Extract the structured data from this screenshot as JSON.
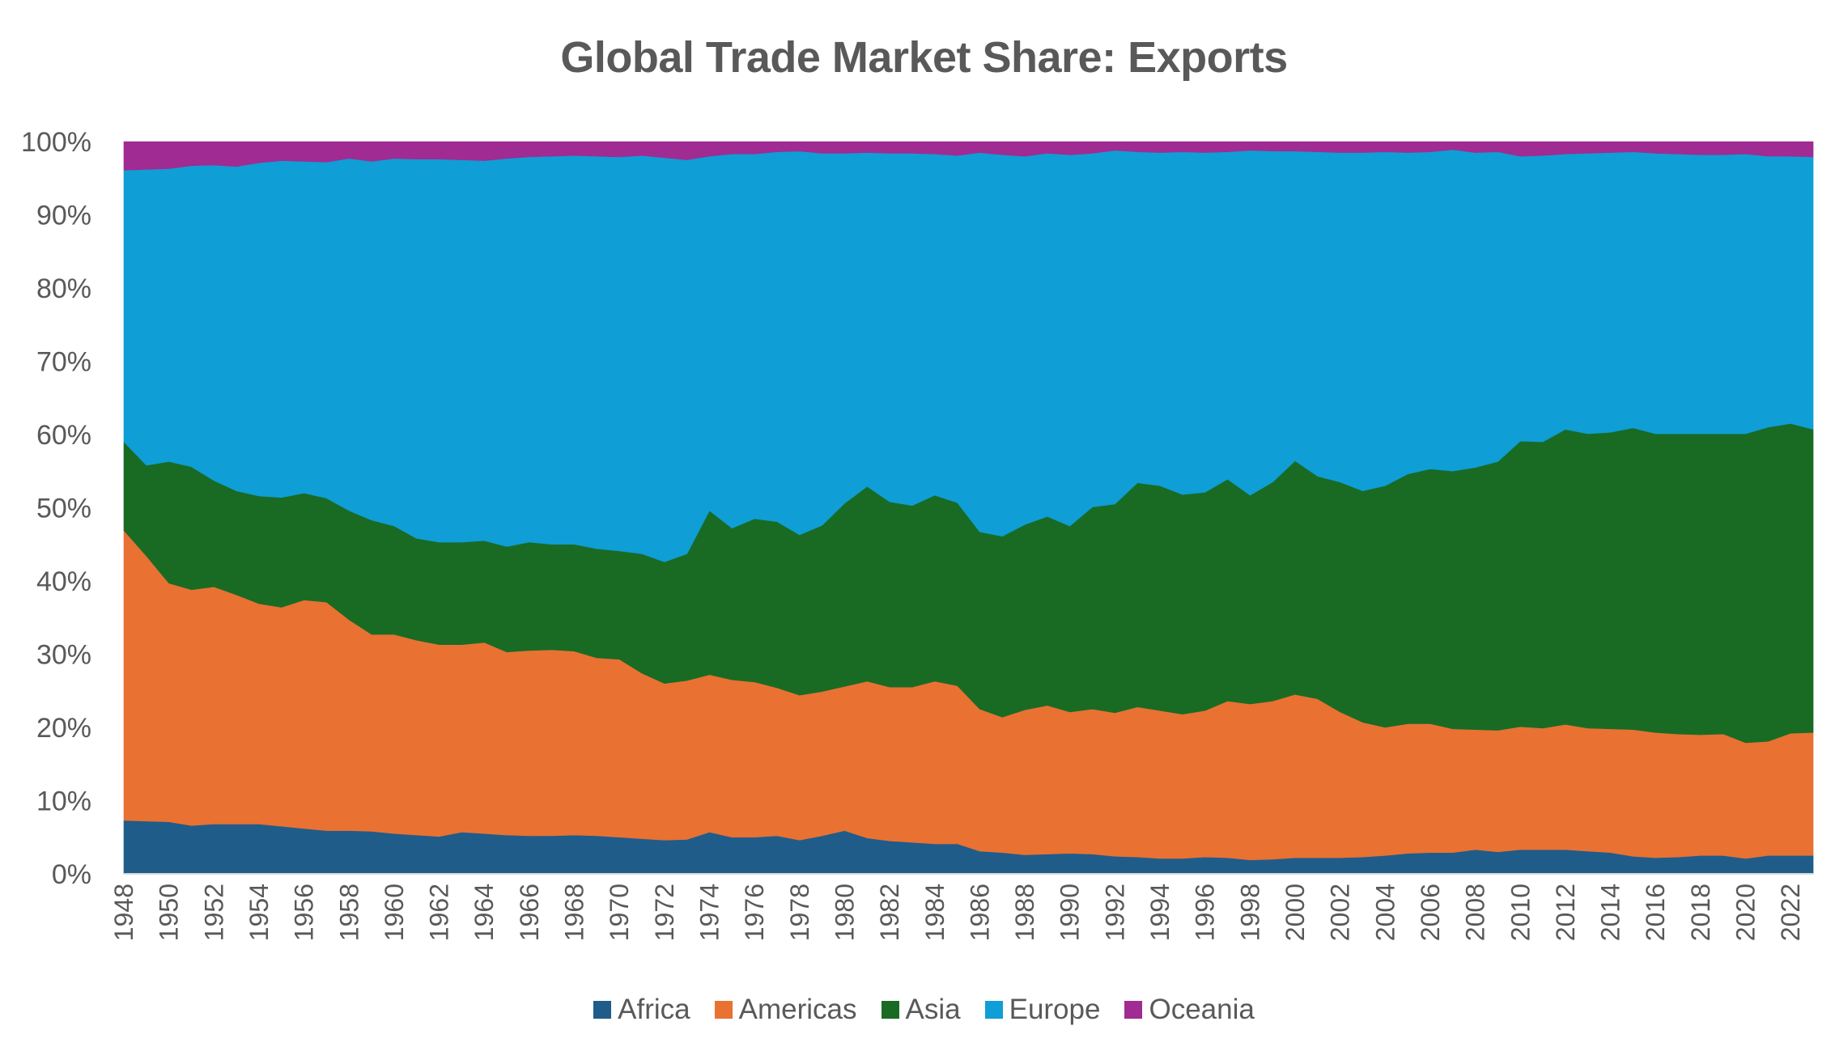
{
  "chart_data": {
    "type": "area",
    "stacked": true,
    "title": "Global Trade Market Share: Exports",
    "xlabel": "",
    "ylabel": "",
    "ylim": [
      0,
      100
    ],
    "y_ticks": [
      "0%",
      "10%",
      "20%",
      "30%",
      "40%",
      "50%",
      "60%",
      "70%",
      "80%",
      "90%",
      "100%"
    ],
    "x": [
      1948,
      1949,
      1950,
      1951,
      1952,
      1953,
      1954,
      1955,
      1956,
      1957,
      1958,
      1959,
      1960,
      1961,
      1962,
      1963,
      1964,
      1965,
      1966,
      1967,
      1968,
      1969,
      1970,
      1971,
      1972,
      1973,
      1974,
      1975,
      1976,
      1977,
      1978,
      1979,
      1980,
      1981,
      1982,
      1983,
      1984,
      1985,
      1986,
      1987,
      1988,
      1989,
      1990,
      1991,
      1992,
      1993,
      1994,
      1995,
      1996,
      1997,
      1998,
      1999,
      2000,
      2001,
      2002,
      2003,
      2004,
      2005,
      2006,
      2007,
      2008,
      2009,
      2010,
      2011,
      2012,
      2013,
      2014,
      2015,
      2016,
      2017,
      2018,
      2019,
      2020,
      2021,
      2022,
      2023
    ],
    "x_tick_labels": [
      "1948",
      "1950",
      "1952",
      "1954",
      "1956",
      "1958",
      "1960",
      "1962",
      "1964",
      "1966",
      "1968",
      "1970",
      "1972",
      "1974",
      "1976",
      "1978",
      "1980",
      "1982",
      "1984",
      "1986",
      "1988",
      "1990",
      "1992",
      "1994",
      "1996",
      "1998",
      "2000",
      "2002",
      "2004",
      "2006",
      "2008",
      "2010",
      "2012",
      "2014",
      "2016",
      "2018",
      "2020",
      "2022"
    ],
    "legend_position": "bottom",
    "series": [
      {
        "name": "Africa",
        "color": "#1F5C8A",
        "values": [
          7.3,
          7.2,
          7.1,
          6.6,
          6.8,
          6.8,
          6.8,
          6.5,
          6.2,
          5.9,
          5.9,
          5.8,
          5.5,
          5.3,
          5.1,
          5.7,
          5.5,
          5.3,
          5.2,
          5.2,
          5.3,
          5.2,
          5.0,
          4.8,
          4.6,
          4.7,
          5.7,
          5.0,
          5.0,
          5.2,
          4.6,
          5.2,
          5.9,
          4.9,
          4.5,
          4.3,
          4.1,
          4.1,
          3.1,
          2.9,
          2.6,
          2.7,
          2.8,
          2.7,
          2.4,
          2.3,
          2.1,
          2.1,
          2.3,
          2.2,
          1.9,
          2.0,
          2.2,
          2.2,
          2.2,
          2.3,
          2.5,
          2.8,
          2.9,
          2.9,
          3.3,
          3.0,
          3.3,
          3.3,
          3.3,
          3.1,
          2.9,
          2.4,
          2.2,
          2.3,
          2.5,
          2.5,
          2.1,
          2.5,
          2.5,
          2.5
        ]
      },
      {
        "name": "Americas",
        "color": "#E97132",
        "values": [
          39.6,
          36.2,
          32.6,
          32.2,
          32.4,
          31.3,
          30.1,
          29.9,
          31.2,
          31.2,
          28.8,
          26.9,
          27.2,
          26.6,
          26.2,
          25.6,
          26.1,
          25.0,
          25.3,
          25.4,
          25.1,
          24.3,
          24.3,
          22.6,
          21.4,
          21.7,
          21.5,
          21.5,
          21.2,
          20.2,
          19.8,
          19.7,
          19.7,
          21.4,
          21.0,
          21.2,
          22.2,
          21.6,
          19.4,
          18.5,
          19.8,
          20.3,
          19.3,
          19.8,
          19.6,
          20.5,
          20.2,
          19.7,
          20.0,
          21.4,
          21.3,
          21.6,
          22.3,
          21.7,
          19.9,
          18.4,
          17.5,
          17.7,
          17.6,
          16.9,
          16.4,
          16.6,
          16.8,
          16.6,
          17.1,
          16.8,
          16.9,
          17.3,
          17.1,
          16.8,
          16.5,
          16.6,
          15.8,
          15.6,
          16.7,
          16.8
        ]
      },
      {
        "name": "Asia",
        "color": "#196B24",
        "values": [
          12.1,
          12.4,
          16.6,
          16.8,
          14.5,
          14.2,
          14.7,
          15.0,
          14.6,
          14.2,
          14.9,
          15.6,
          14.8,
          13.9,
          14.0,
          14.0,
          13.9,
          14.4,
          14.8,
          14.4,
          14.6,
          14.9,
          14.8,
          16.3,
          16.6,
          17.3,
          22.4,
          20.7,
          22.3,
          22.7,
          21.9,
          22.7,
          25.0,
          26.6,
          25.3,
          24.8,
          25.4,
          25.0,
          24.2,
          24.7,
          25.3,
          25.8,
          25.4,
          27.6,
          28.5,
          30.6,
          30.7,
          30.0,
          29.8,
          30.3,
          28.5,
          29.9,
          31.9,
          30.4,
          31.4,
          31.6,
          33.0,
          34.1,
          34.8,
          35.2,
          35.8,
          36.7,
          39.0,
          39.1,
          40.3,
          40.2,
          40.5,
          41.2,
          40.8,
          41.0,
          41.1,
          41.0,
          42.2,
          42.9,
          42.3,
          41.4
        ]
      },
      {
        "name": "Europe",
        "color": "#0F9ED5",
        "values": [
          37.1,
          40.4,
          40.0,
          41.1,
          43.1,
          44.3,
          45.5,
          46.0,
          45.3,
          45.9,
          48.1,
          49.0,
          50.2,
          51.8,
          52.3,
          52.2,
          51.9,
          53.0,
          52.6,
          53.0,
          53.1,
          53.6,
          53.8,
          54.4,
          55.2,
          53.8,
          48.4,
          51.1,
          49.8,
          50.5,
          52.4,
          50.8,
          47.8,
          45.6,
          47.6,
          48.1,
          46.6,
          47.4,
          51.8,
          52.1,
          50.3,
          49.6,
          50.7,
          48.3,
          48.3,
          45.2,
          45.5,
          46.8,
          46.4,
          44.7,
          47.1,
          45.2,
          42.3,
          44.3,
          45.0,
          46.2,
          45.6,
          43.9,
          43.3,
          43.9,
          43.0,
          42.3,
          38.9,
          39.1,
          37.6,
          38.3,
          38.2,
          37.7,
          38.3,
          38.2,
          38.1,
          38.1,
          38.2,
          37.0,
          36.5,
          37.2
        ]
      },
      {
        "name": "Oceania",
        "color": "#A02B93",
        "values": [
          3.9,
          3.8,
          3.7,
          3.3,
          3.2,
          3.4,
          2.9,
          2.6,
          2.7,
          2.8,
          2.3,
          2.7,
          2.3,
          2.4,
          2.4,
          2.5,
          2.6,
          2.3,
          2.1,
          2.0,
          1.9,
          2.0,
          2.1,
          1.9,
          2.2,
          2.5,
          2.0,
          1.7,
          1.7,
          1.4,
          1.3,
          1.6,
          1.6,
          1.5,
          1.6,
          1.6,
          1.7,
          1.9,
          1.5,
          1.8,
          2.0,
          1.6,
          1.8,
          1.6,
          1.2,
          1.4,
          1.5,
          1.4,
          1.5,
          1.4,
          1.2,
          1.3,
          1.3,
          1.4,
          1.5,
          1.5,
          1.4,
          1.5,
          1.4,
          1.1,
          1.5,
          1.4,
          2.0,
          1.9,
          1.7,
          1.6,
          1.5,
          1.4,
          1.6,
          1.7,
          1.8,
          1.8,
          1.7,
          2.0,
          2.0,
          2.1
        ]
      }
    ]
  }
}
